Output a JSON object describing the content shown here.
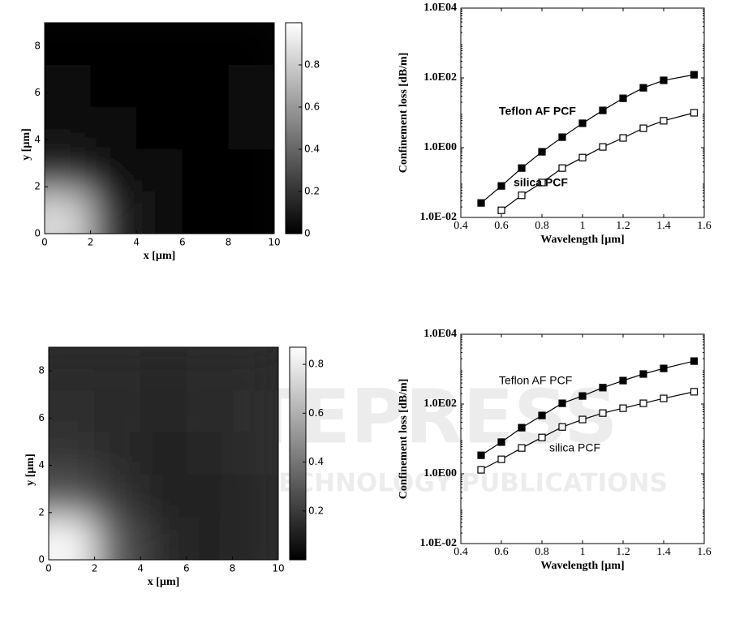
{
  "chart_data": [
    {
      "type": "heatmap",
      "xlabel": "x  [µm]",
      "ylabel": "y  [µm]",
      "xlim": [
        0,
        10
      ],
      "xticks": [
        0,
        2,
        4,
        6,
        8,
        10
      ],
      "ylim": [
        0,
        9
      ],
      "yticks": [
        0,
        2,
        4,
        6,
        8
      ],
      "z": [
        [
          0.85,
          0.15,
          0.04,
          0.02,
          0.02
        ],
        [
          0.15,
          0.06,
          0.03,
          0.02,
          0.02
        ],
        [
          0.06,
          0.04,
          0.02,
          0.02,
          0.03
        ],
        [
          0.03,
          0.02,
          0.02,
          0.02,
          0.03
        ],
        [
          0.02,
          0.02,
          0.02,
          0.02,
          0.02
        ]
      ],
      "colormap": "gray",
      "zlim": [
        0,
        1
      ],
      "zticks": [
        0,
        0.2,
        0.4,
        0.6,
        0.8
      ]
    },
    {
      "type": "line",
      "xlabel": "Wavelength  [µm]",
      "ylabel": "Confinement  loss [dB/m]",
      "x": [
        0.5,
        0.6,
        0.7,
        0.8,
        0.9,
        1.0,
        1.1,
        1.2,
        1.3,
        1.4,
        1.55
      ],
      "series": [
        {
          "name": "Teflon AF PCF",
          "color": "#000000",
          "marker": "filled-square",
          "values": [
            0.026,
            0.08,
            0.26,
            0.76,
            2.0,
            5,
            11.7,
            26,
            52,
            85,
            123
          ]
        },
        {
          "name": "silica PCF",
          "color": "#000000",
          "marker": "open-square",
          "values": [
            null,
            0.016,
            0.043,
            0.1,
            0.26,
            0.52,
            1.05,
            1.9,
            3.6,
            5.9,
            10
          ]
        }
      ],
      "label_weight": "bold",
      "log_y": true,
      "xlim": [
        0.4,
        1.6
      ],
      "xticks": [
        0.4,
        0.6,
        0.8,
        1.0,
        1.2,
        1.4,
        1.6
      ],
      "ylim": [
        0.01,
        10000
      ],
      "yticks": [
        {
          "value": 0.01,
          "label": "1.0E-02"
        },
        {
          "value": 1,
          "label": "1.0E00"
        },
        {
          "value": 100,
          "label": "1.0E02"
        },
        {
          "value": 10000,
          "label": "1.0E04"
        }
      ]
    },
    {
      "type": "heatmap",
      "xlabel": "x  [µm]",
      "ylabel": "y  [µm]",
      "xlim": [
        0,
        10
      ],
      "xticks": [
        0,
        2,
        4,
        6,
        8,
        10
      ],
      "ylim": [
        0,
        9
      ],
      "yticks": [
        0,
        2,
        4,
        6,
        8
      ],
      "z": [
        [
          0.85,
          0.3,
          0.15,
          0.12,
          0.14
        ],
        [
          0.3,
          0.18,
          0.12,
          0.12,
          0.15
        ],
        [
          0.18,
          0.15,
          0.12,
          0.13,
          0.16
        ],
        [
          0.16,
          0.15,
          0.13,
          0.14,
          0.16
        ],
        [
          0.15,
          0.14,
          0.13,
          0.14,
          0.15
        ]
      ],
      "colormap": "gray",
      "zlim": [
        0,
        0.87
      ],
      "zticks": [
        0.2,
        0.4,
        0.6,
        0.8
      ]
    },
    {
      "type": "line",
      "xlabel": "Wavelength  [µm]",
      "ylabel": "Confinement  loss [dB/m]",
      "x": [
        0.5,
        0.6,
        0.7,
        0.8,
        0.9,
        1.0,
        1.1,
        1.2,
        1.3,
        1.4,
        1.55
      ],
      "series": [
        {
          "name": "Teflon AF PCF",
          "color": "#000000",
          "marker": "filled-square",
          "values": [
            3.4,
            8.1,
            21,
            47,
            105,
            170,
            295,
            470,
            725,
            1050,
            1700
          ]
        },
        {
          "name": "silica PCF",
          "color": "#000000",
          "marker": "open-square",
          "values": [
            1.3,
            2.6,
            5.5,
            11,
            22,
            36,
            55,
            76,
            105,
            145,
            225
          ]
        }
      ],
      "label_weight": "normal",
      "log_y": true,
      "xlim": [
        0.4,
        1.6
      ],
      "xticks": [
        0.4,
        0.6,
        0.8,
        1.0,
        1.2,
        1.4,
        1.6
      ],
      "ylim": [
        0.01,
        10000
      ],
      "yticks": [
        {
          "value": 0.01,
          "label": "1.0E-02"
        },
        {
          "value": 1,
          "label": "1.0E00"
        },
        {
          "value": 100,
          "label": "1.0E02"
        },
        {
          "value": 10000,
          "label": "1.0E04"
        }
      ]
    }
  ],
  "watermark": {
    "logo": "SCITEPRESS",
    "tagline": "SCIENCE AND TECHNOLOGY PUBLICATIONS"
  }
}
